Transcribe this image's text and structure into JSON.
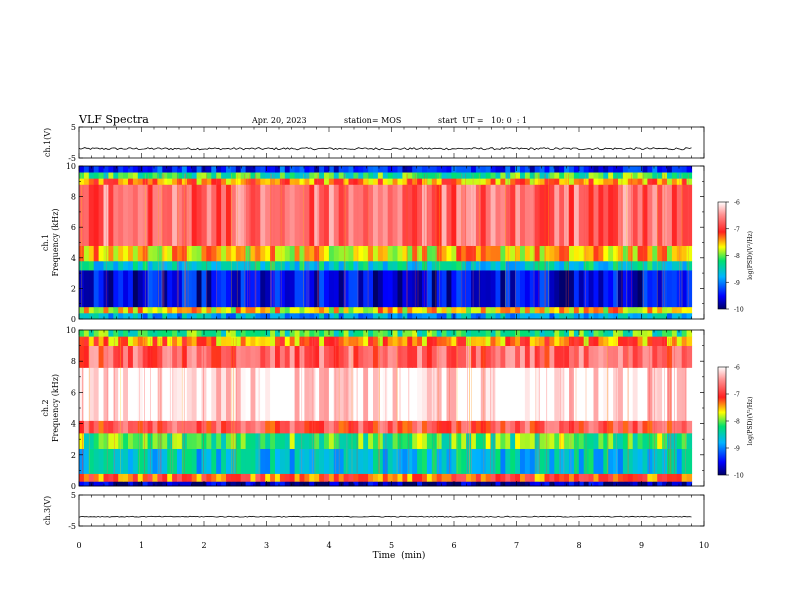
{
  "header": {
    "title": "VLF Spectra",
    "date": "Apr. 20, 2023",
    "station": "station= MOS",
    "start": "start  UT =   10: 0  : 1"
  },
  "chart_data": [
    {
      "type": "line",
      "name": "ch1-waveform",
      "ylabel": "ch.1(V)",
      "ylim": [
        -5,
        5
      ],
      "yticks": [
        "5",
        "-5"
      ],
      "x": [
        0,
        1,
        2,
        3,
        4,
        5,
        6,
        7,
        8,
        9,
        9.8
      ],
      "y": [
        -2.0,
        -2.0,
        -2.0,
        -2.0,
        -2.0,
        -2.0,
        -2.0,
        -2.0,
        -2.0,
        -2.0,
        -2.0
      ]
    },
    {
      "type": "heatmap",
      "name": "ch1-spectrogram",
      "ylabel": "ch.1\nFrequency (kHz)",
      "ylim": [
        0,
        10
      ],
      "yticks": [
        "0",
        "2",
        "4",
        "6",
        "8",
        "10"
      ],
      "colorbar": {
        "label": "log(PSD)(V²/Hz)",
        "range": [
          -10,
          -6
        ],
        "ticks": [
          "-6",
          "-7",
          "-8",
          "-9",
          "-10"
        ]
      },
      "bands_khz": [
        {
          "from": 0,
          "to": 0.4,
          "level": -8.8
        },
        {
          "from": 0.4,
          "to": 0.8,
          "level": -7.6
        },
        {
          "from": 0.8,
          "to": 3.2,
          "level": -9.6
        },
        {
          "from": 3.2,
          "to": 3.8,
          "level": -8.5
        },
        {
          "from": 3.8,
          "to": 4.8,
          "level": -7.6
        },
        {
          "from": 4.8,
          "to": 8.8,
          "level": -6.7
        },
        {
          "from": 8.8,
          "to": 9.2,
          "level": -7.4
        },
        {
          "from": 9.2,
          "to": 9.6,
          "level": -8.2
        },
        {
          "from": 9.6,
          "to": 10,
          "level": -9.4
        }
      ]
    },
    {
      "type": "heatmap",
      "name": "ch2-spectrogram",
      "ylabel": "ch.2\nFrequency (kHz)",
      "ylim": [
        0,
        10
      ],
      "yticks": [
        "0",
        "2",
        "4",
        "6",
        "8",
        "10"
      ],
      "colorbar": {
        "label": "log(PSD)(V²/Hz)",
        "range": [
          -10,
          -6
        ],
        "ticks": [
          "-6",
          "-7",
          "-8",
          "-9",
          "-10"
        ]
      },
      "bands_khz": [
        {
          "from": 0,
          "to": 0.3,
          "level": -9.8
        },
        {
          "from": 0.3,
          "to": 0.8,
          "level": -7.2
        },
        {
          "from": 0.8,
          "to": 2.4,
          "level": -8.6
        },
        {
          "from": 2.4,
          "to": 3.4,
          "level": -8.1
        },
        {
          "from": 3.4,
          "to": 4.2,
          "level": -6.9
        },
        {
          "from": 4.2,
          "to": 7.6,
          "level": -6.0
        },
        {
          "from": 7.6,
          "to": 9.0,
          "level": -6.8
        },
        {
          "from": 9.0,
          "to": 9.6,
          "level": -7.4
        },
        {
          "from": 9.6,
          "to": 10,
          "level": -8.2
        }
      ]
    },
    {
      "type": "line",
      "name": "ch3-waveform",
      "ylabel": "ch.3(V)",
      "ylim": [
        -5,
        5
      ],
      "yticks": [
        "5",
        "-5"
      ],
      "x": [
        0,
        1,
        2,
        3,
        4,
        5,
        6,
        7,
        8,
        9,
        9.8
      ],
      "y": [
        -2.0,
        -2.0,
        -2.0,
        -2.0,
        -2.0,
        -2.0,
        -2.0,
        -2.0,
        -2.0,
        -2.0,
        -2.0
      ]
    }
  ],
  "xaxis": {
    "label": "Time  (min)",
    "range": [
      0,
      10
    ],
    "data_end": 9.8,
    "ticks": [
      "0",
      "1",
      "2",
      "3",
      "4",
      "5",
      "6",
      "7",
      "8",
      "9",
      "10"
    ]
  }
}
